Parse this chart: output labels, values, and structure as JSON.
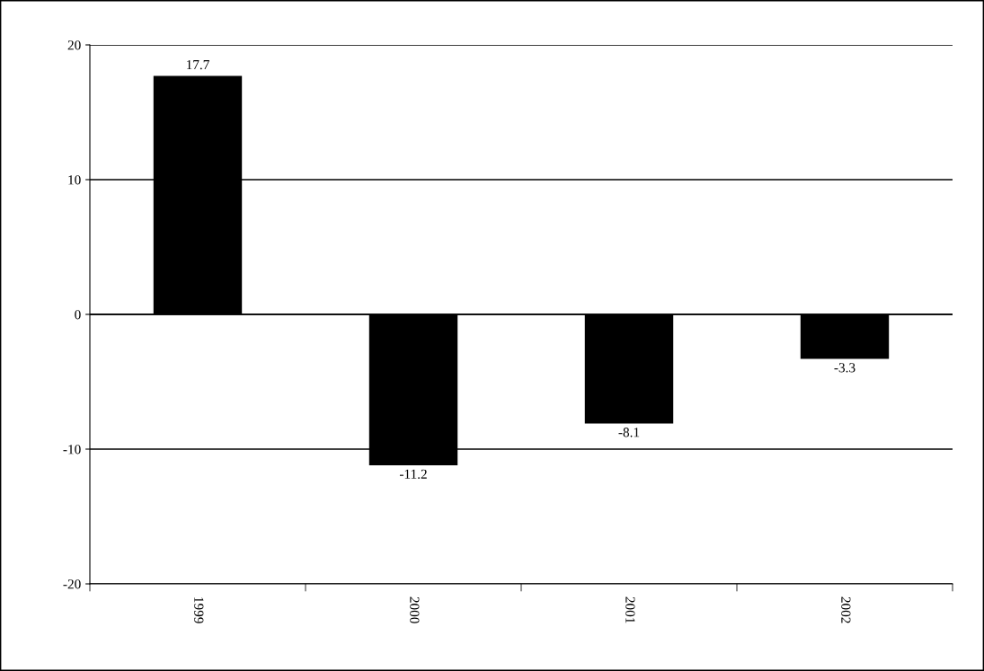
{
  "chart_data": {
    "type": "bar",
    "categories": [
      "1999",
      "2000",
      "2001",
      "2002"
    ],
    "values": [
      17.7,
      -11.2,
      -8.1,
      -3.3
    ],
    "color": "#000000",
    "ylim": [
      -20,
      20
    ],
    "yticks": [
      -20,
      -10,
      0,
      10,
      20
    ],
    "grid": "y",
    "data_labels": true
  }
}
